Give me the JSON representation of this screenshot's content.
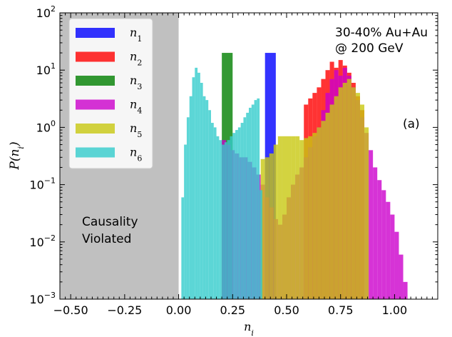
{
  "chart_data": {
    "type": "bar",
    "subtype": "overlaid-histogram",
    "title": "",
    "xlabel": "n_i",
    "ylabel": "P(n_i)",
    "xlim": [
      -0.55,
      1.2
    ],
    "yscale": "log",
    "ylim": [
      0.001,
      100
    ],
    "xticks": [
      -0.5,
      -0.25,
      0.0,
      0.25,
      0.5,
      0.75,
      1.0
    ],
    "xtick_labels": [
      "−0.50",
      "−0.25",
      "0.00",
      "0.25",
      "0.50",
      "0.75",
      "1.00"
    ],
    "yticks": [
      {
        "value": 0.001,
        "base": "10",
        "exp": "−3"
      },
      {
        "value": 0.01,
        "base": "10",
        "exp": "−2"
      },
      {
        "value": 0.1,
        "base": "10",
        "exp": "−1"
      },
      {
        "value": 1,
        "base": "10",
        "exp": "0"
      },
      {
        "value": 10,
        "base": "10",
        "exp": "1"
      },
      {
        "value": 100,
        "base": "10",
        "exp": "2"
      }
    ],
    "grid": false,
    "legend": {
      "position": "top-left"
    },
    "shaded_region": {
      "x": [
        -0.55,
        0.0
      ],
      "color": "#c0c0c0",
      "label_lines": [
        "Causality",
        "Violated"
      ]
    },
    "annotations": [
      {
        "lines": [
          "30-40% Au+Au",
          "@ 200 GeV"
        ],
        "position": "top-right"
      },
      {
        "lines": [
          "(a)"
        ],
        "position": "right"
      }
    ],
    "series": [
      {
        "name": "n_1",
        "color": "#0000ff",
        "bin_width": 0.05,
        "x": [
          0.4
        ],
        "values": [
          20
        ]
      },
      {
        "name": "n_2",
        "color": "#ff0000",
        "bin_width": 0.02,
        "x": [
          0.58,
          0.6,
          0.62,
          0.64,
          0.66,
          0.68,
          0.7,
          0.72,
          0.74,
          0.76,
          0.78,
          0.8,
          0.82,
          0.84
        ],
        "values": [
          2.5,
          3.2,
          4.0,
          5.0,
          7.0,
          10.0,
          14.0,
          11.0,
          15.0,
          12.0,
          9.0,
          6.0,
          3.5,
          2.0
        ]
      },
      {
        "name": "n_3",
        "color": "#008000",
        "bin_width": 0.05,
        "x": [
          0.2
        ],
        "values": [
          20
        ]
      },
      {
        "name": "n_4",
        "color": "#cc00cc",
        "bin_width": 0.02,
        "x": [
          0.2,
          0.22,
          0.24,
          0.26,
          0.28,
          0.3,
          0.32,
          0.34,
          0.36,
          0.38,
          0.4,
          0.42,
          0.44,
          0.46,
          0.48,
          0.5,
          0.52,
          0.54,
          0.56,
          0.58,
          0.6,
          0.62,
          0.64,
          0.66,
          0.68,
          0.7,
          0.72,
          0.74,
          0.76,
          0.78,
          0.8,
          0.82,
          0.84,
          0.86,
          0.88,
          0.9,
          0.92,
          0.94,
          0.96,
          0.98,
          1.0,
          1.02,
          1.04
        ],
        "values": [
          0.6,
          0.5,
          0.4,
          0.35,
          0.3,
          0.3,
          0.25,
          0.2,
          0.15,
          0.1,
          0.06,
          0.04,
          0.025,
          0.02,
          0.03,
          0.06,
          0.1,
          0.15,
          0.2,
          0.3,
          0.45,
          0.7,
          1.0,
          2.0,
          4.0,
          7.0,
          10.0,
          8.0,
          11.0,
          8.0,
          5.0,
          3.0,
          1.5,
          0.8,
          0.4,
          0.2,
          0.12,
          0.08,
          0.05,
          0.03,
          0.015,
          0.006,
          0.002
        ]
      },
      {
        "name": "n_5",
        "color": "#c8c810",
        "bin_width": 0.02,
        "x": [
          0.38,
          0.4,
          0.42,
          0.44,
          0.46,
          0.48,
          0.5,
          0.52,
          0.54,
          0.56,
          0.58,
          0.6,
          0.62,
          0.64,
          0.66,
          0.68,
          0.7,
          0.72,
          0.74,
          0.76,
          0.78,
          0.8,
          0.82,
          0.84,
          0.86
        ],
        "values": [
          0.28,
          0.3,
          0.35,
          0.5,
          0.7,
          0.7,
          0.7,
          0.7,
          0.7,
          0.6,
          0.65,
          0.7,
          0.8,
          1.0,
          1.3,
          1.8,
          2.5,
          3.5,
          5.0,
          6.0,
          7.0,
          5.0,
          4.0,
          2.5,
          1.0
        ]
      },
      {
        "name": "n_6",
        "color": "#33cccc",
        "bin_width": 0.0125,
        "x": [
          0.0,
          0.0125,
          0.025,
          0.0375,
          0.05,
          0.0625,
          0.075,
          0.0875,
          0.1,
          0.1125,
          0.125,
          0.1375,
          0.15,
          0.1625,
          0.175,
          0.1875,
          0.2,
          0.2125,
          0.225,
          0.2375,
          0.25,
          0.2625,
          0.275,
          0.2875,
          0.3,
          0.3125,
          0.325,
          0.3375,
          0.35,
          0.3625,
          0.375
        ],
        "values": [
          0.001,
          0.06,
          0.5,
          1.5,
          3.5,
          7.5,
          11.0,
          9.0,
          6.0,
          3.5,
          3.0,
          2.0,
          1.2,
          1.0,
          0.7,
          0.6,
          0.5,
          0.55,
          0.6,
          0.7,
          0.8,
          0.9,
          1.0,
          1.2,
          1.5,
          1.8,
          2.2,
          2.5,
          3.0,
          3.2,
          0.08
        ]
      }
    ]
  }
}
